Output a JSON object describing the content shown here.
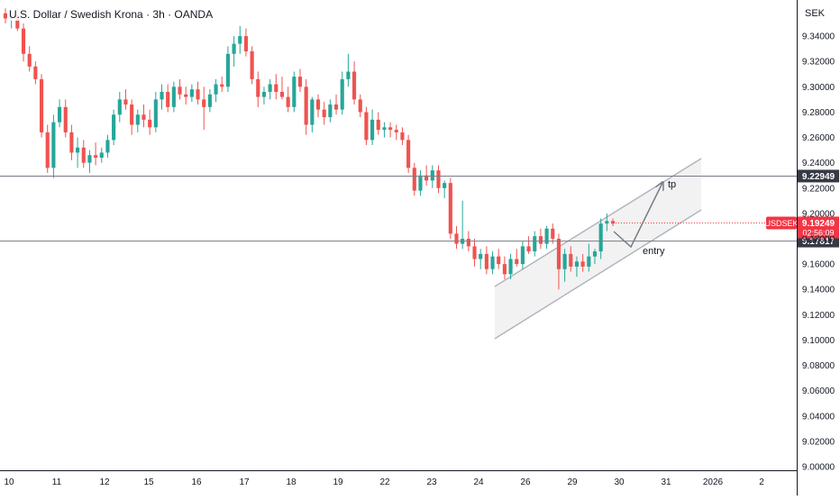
{
  "header": {
    "title": "U.S. Dollar / Swedish Krona · 3h · OANDA",
    "currency": "SEK"
  },
  "colors": {
    "up": "#26a69a",
    "down": "#ef5350",
    "hline": "#787b86",
    "channel_fill": "#f0f0f0",
    "channel_line": "#b2b5be",
    "price_tag": "#f23645",
    "level_tag": "#363a45"
  },
  "chart_data": {
    "type": "candlestick",
    "symbol": "USDSEK",
    "ylim": [
      9.0,
      9.36
    ],
    "y_ticks": [
      "9.34000",
      "9.32000",
      "9.30000",
      "9.28000",
      "9.26000",
      "9.24000",
      "9.22000",
      "9.20000",
      "9.18000",
      "9.16000",
      "9.14000",
      "9.12000",
      "9.10000",
      "9.08000",
      "9.06000",
      "9.04000",
      "9.02000",
      "9.00000"
    ],
    "x_ticks": [
      "10",
      "11",
      "12",
      "15",
      "16",
      "17",
      "18",
      "19",
      "22",
      "23",
      "24",
      "26",
      "29",
      "30",
      "31",
      "2026",
      "2"
    ],
    "candles": [
      [
        9.358,
        9.362,
        9.35,
        9.354
      ],
      [
        9.354,
        9.36,
        9.346,
        9.356
      ],
      [
        9.356,
        9.362,
        9.344,
        9.346
      ],
      [
        9.346,
        9.35,
        9.32,
        9.326
      ],
      [
        9.326,
        9.332,
        9.312,
        9.316
      ],
      [
        9.316,
        9.32,
        9.302,
        9.306
      ],
      [
        9.306,
        9.31,
        9.26,
        9.264
      ],
      [
        9.264,
        9.27,
        9.232,
        9.236
      ],
      [
        9.236,
        9.278,
        9.228,
        9.272
      ],
      [
        9.272,
        9.29,
        9.268,
        9.284
      ],
      [
        9.284,
        9.29,
        9.26,
        9.264
      ],
      [
        9.264,
        9.27,
        9.242,
        9.248
      ],
      [
        9.248,
        9.26,
        9.236,
        9.252
      ],
      [
        9.252,
        9.258,
        9.236,
        9.24
      ],
      [
        9.24,
        9.25,
        9.232,
        9.246
      ],
      [
        9.246,
        9.256,
        9.238,
        9.244
      ],
      [
        9.244,
        9.252,
        9.24,
        9.248
      ],
      [
        9.248,
        9.262,
        9.244,
        9.258
      ],
      [
        9.258,
        9.282,
        9.254,
        9.278
      ],
      [
        9.278,
        9.296,
        9.272,
        9.29
      ],
      [
        9.29,
        9.298,
        9.282,
        9.286
      ],
      [
        9.286,
        9.29,
        9.262,
        9.27
      ],
      [
        9.27,
        9.282,
        9.264,
        9.278
      ],
      [
        9.278,
        9.286,
        9.268,
        9.274
      ],
      [
        9.274,
        9.282,
        9.262,
        9.268
      ],
      [
        9.268,
        9.296,
        9.264,
        9.29
      ],
      [
        9.29,
        9.302,
        9.282,
        9.296
      ],
      [
        9.296,
        9.302,
        9.28,
        9.284
      ],
      [
        9.284,
        9.304,
        9.28,
        9.3
      ],
      [
        9.3,
        9.306,
        9.29,
        9.294
      ],
      [
        9.294,
        9.3,
        9.286,
        9.292
      ],
      [
        9.292,
        9.302,
        9.288,
        9.298
      ],
      [
        9.298,
        9.304,
        9.286,
        9.29
      ],
      [
        9.29,
        9.3,
        9.266,
        9.284
      ],
      [
        9.284,
        9.298,
        9.28,
        9.294
      ],
      [
        9.294,
        9.306,
        9.288,
        9.302
      ],
      [
        9.302,
        9.308,
        9.296,
        9.3
      ],
      [
        9.3,
        9.332,
        9.296,
        9.326
      ],
      [
        9.326,
        9.34,
        9.316,
        9.334
      ],
      [
        9.334,
        9.348,
        9.326,
        9.34
      ],
      [
        9.34,
        9.346,
        9.324,
        9.328
      ],
      [
        9.328,
        9.332,
        9.302,
        9.306
      ],
      [
        9.306,
        9.312,
        9.284,
        9.292
      ],
      [
        9.292,
        9.3,
        9.286,
        9.296
      ],
      [
        9.296,
        9.306,
        9.29,
        9.302
      ],
      [
        9.302,
        9.31,
        9.29,
        9.296
      ],
      [
        9.296,
        9.308,
        9.29,
        9.292
      ],
      [
        9.292,
        9.3,
        9.28,
        9.284
      ],
      [
        9.284,
        9.312,
        9.28,
        9.308
      ],
      [
        9.308,
        9.314,
        9.296,
        9.3
      ],
      [
        9.3,
        9.306,
        9.262,
        9.27
      ],
      [
        9.27,
        9.292,
        9.264,
        9.29
      ],
      [
        9.29,
        9.294,
        9.276,
        9.282
      ],
      [
        9.282,
        9.288,
        9.27,
        9.276
      ],
      [
        9.276,
        9.29,
        9.272,
        9.286
      ],
      [
        9.286,
        9.294,
        9.278,
        9.282
      ],
      [
        9.282,
        9.312,
        9.278,
        9.306
      ],
      [
        9.306,
        9.326,
        9.3,
        9.312
      ],
      [
        9.312,
        9.32,
        9.286,
        9.29
      ],
      [
        9.29,
        9.294,
        9.276,
        9.28
      ],
      [
        9.28,
        9.284,
        9.254,
        9.258
      ],
      [
        9.258,
        9.282,
        9.254,
        9.274
      ],
      [
        9.274,
        9.28,
        9.262,
        9.266
      ],
      [
        9.266,
        9.272,
        9.26,
        9.268
      ],
      [
        9.268,
        9.272,
        9.26,
        9.266
      ],
      [
        9.266,
        9.27,
        9.258,
        9.264
      ],
      [
        9.264,
        9.268,
        9.254,
        9.258
      ],
      [
        9.258,
        9.262,
        9.232,
        9.236
      ],
      [
        9.236,
        9.24,
        9.214,
        9.218
      ],
      [
        9.218,
        9.234,
        9.214,
        9.23
      ],
      [
        9.23,
        9.238,
        9.222,
        9.226
      ],
      [
        9.226,
        9.238,
        9.22,
        9.234
      ],
      [
        9.234,
        9.238,
        9.216,
        9.22
      ],
      [
        9.22,
        9.226,
        9.212,
        9.224
      ],
      [
        9.224,
        9.228,
        9.18,
        9.184
      ],
      [
        9.184,
        9.19,
        9.172,
        9.176
      ],
      [
        9.176,
        9.21,
        9.172,
        9.18
      ],
      [
        9.18,
        9.186,
        9.17,
        9.174
      ],
      [
        9.174,
        9.18,
        9.158,
        9.164
      ],
      [
        9.164,
        9.172,
        9.156,
        9.168
      ],
      [
        9.168,
        9.174,
        9.152,
        9.156
      ],
      [
        9.156,
        9.17,
        9.152,
        9.166
      ],
      [
        9.166,
        9.172,
        9.156,
        9.16
      ],
      [
        9.16,
        9.166,
        9.148,
        9.152
      ],
      [
        9.152,
        9.168,
        9.148,
        9.164
      ],
      [
        9.164,
        9.172,
        9.158,
        9.16
      ],
      [
        9.16,
        9.178,
        9.156,
        9.174
      ],
      [
        9.174,
        9.182,
        9.168,
        9.17
      ],
      [
        9.17,
        9.186,
        9.166,
        9.182
      ],
      [
        9.182,
        9.188,
        9.172,
        9.176
      ],
      [
        9.176,
        9.19,
        9.172,
        9.188
      ],
      [
        9.188,
        9.192,
        9.176,
        9.18
      ],
      [
        9.18,
        9.184,
        9.14,
        9.156
      ],
      [
        9.156,
        9.172,
        9.146,
        9.168
      ],
      [
        9.168,
        9.174,
        9.154,
        9.158
      ],
      [
        9.158,
        9.166,
        9.15,
        9.162
      ],
      [
        9.162,
        9.168,
        9.154,
        9.158
      ],
      [
        9.158,
        9.176,
        9.154,
        9.166
      ],
      [
        9.166,
        9.172,
        9.16,
        9.17
      ],
      [
        9.17,
        9.196,
        9.164,
        9.192
      ],
      [
        9.192,
        9.2,
        9.186,
        9.194
      ],
      [
        9.194,
        9.196,
        9.19,
        9.192
      ]
    ],
    "price_levels": [
      {
        "name": "tp-level",
        "value": 9.22949,
        "label": "9.22949"
      },
      {
        "name": "entry-level",
        "value": 9.17817,
        "label": "9.17817"
      }
    ],
    "last_price": {
      "symbol": "USDSEK",
      "value": 9.19249,
      "label": "9.19249",
      "countdown": "02:56:09"
    },
    "annotations": [
      {
        "name": "tp",
        "text": "tp"
      },
      {
        "name": "entry",
        "text": "entry"
      }
    ],
    "drawings": [
      {
        "name": "ascending-channel",
        "type": "parallel-channel"
      },
      {
        "name": "projection-path",
        "type": "arrow-path"
      }
    ]
  }
}
